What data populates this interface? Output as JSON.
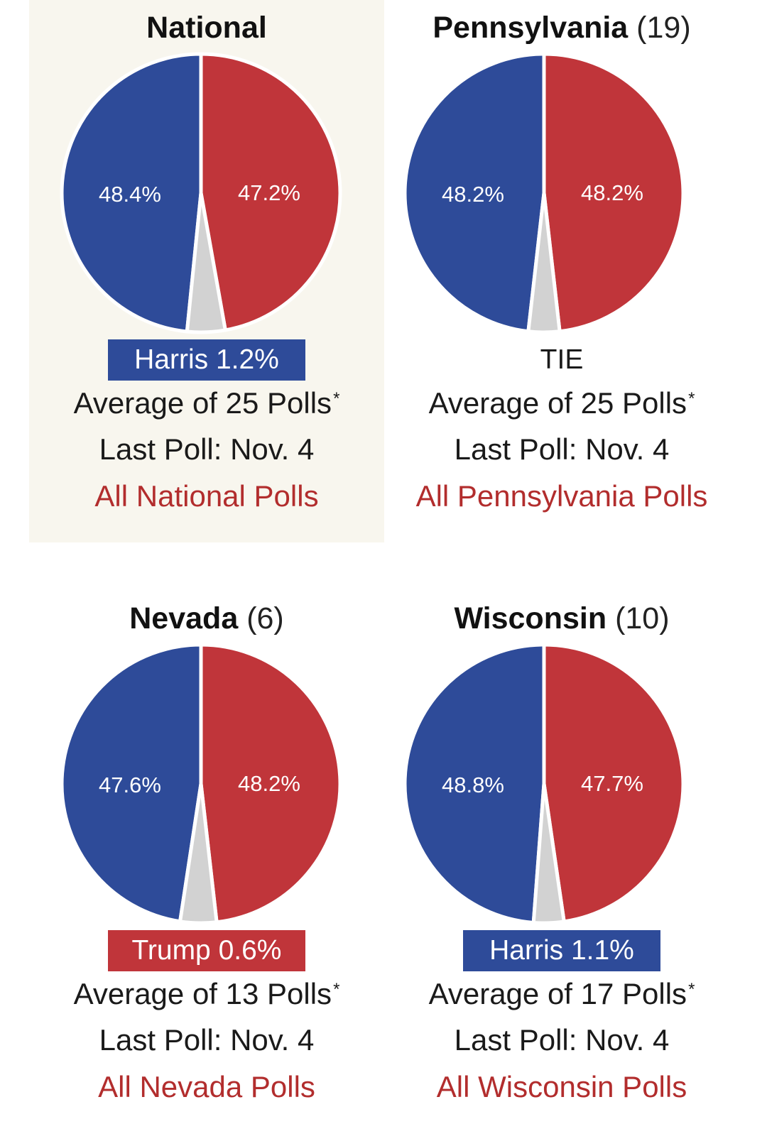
{
  "colors": {
    "harris": "#2e4b99",
    "trump": "#c0353a",
    "other": "#d2d2d2",
    "link": "#b22d2d",
    "highlight_bg": "#f8f6ee"
  },
  "panels": [
    {
      "title": "National",
      "ev": "",
      "highlight": true,
      "spread_text": "Harris 1.2%",
      "spread_party": "harris",
      "polls_text": "Average of 25 Polls",
      "footnote_mark": "*",
      "last_poll": "Last Poll: Nov. 4",
      "link": "All National Polls"
    },
    {
      "title": "Pennsylvania",
      "ev": "(19)",
      "highlight": false,
      "spread_text": "TIE",
      "spread_party": "tie",
      "polls_text": "Average of 25 Polls",
      "footnote_mark": "*",
      "last_poll": "Last Poll: Nov. 4",
      "link": "All Pennsylvania Polls"
    },
    {
      "title": "Nevada",
      "ev": "(6)",
      "highlight": false,
      "spread_text": "Trump 0.6%",
      "spread_party": "trump",
      "polls_text": "Average of 13 Polls",
      "footnote_mark": "*",
      "last_poll": "Last Poll: Nov. 4",
      "link": "All Nevada Polls"
    },
    {
      "title": "Wisconsin",
      "ev": "(10)",
      "highlight": false,
      "spread_text": "Harris 1.1%",
      "spread_party": "harris",
      "polls_text": "Average of 17 Polls",
      "footnote_mark": "*",
      "last_poll": "Last Poll: Nov. 4",
      "link": "All Wisconsin Polls"
    }
  ],
  "chart_data": [
    {
      "type": "pie",
      "title": "National",
      "labels": [
        "Harris",
        "Trump",
        "Other"
      ],
      "values": [
        48.4,
        47.2,
        4.4
      ],
      "value_labels": [
        "48.4%",
        "47.2%",
        ""
      ]
    },
    {
      "type": "pie",
      "title": "Pennsylvania (19)",
      "labels": [
        "Harris",
        "Trump",
        "Other"
      ],
      "values": [
        48.2,
        48.2,
        3.6
      ],
      "value_labels": [
        "48.2%",
        "48.2%",
        ""
      ]
    },
    {
      "type": "pie",
      "title": "Nevada (6)",
      "labels": [
        "Harris",
        "Trump",
        "Other"
      ],
      "values": [
        47.6,
        48.2,
        4.2
      ],
      "value_labels": [
        "47.6%",
        "48.2%",
        ""
      ]
    },
    {
      "type": "pie",
      "title": "Wisconsin (10)",
      "labels": [
        "Harris",
        "Trump",
        "Other"
      ],
      "values": [
        48.8,
        47.7,
        3.5
      ],
      "value_labels": [
        "48.8%",
        "47.7%",
        ""
      ]
    }
  ]
}
